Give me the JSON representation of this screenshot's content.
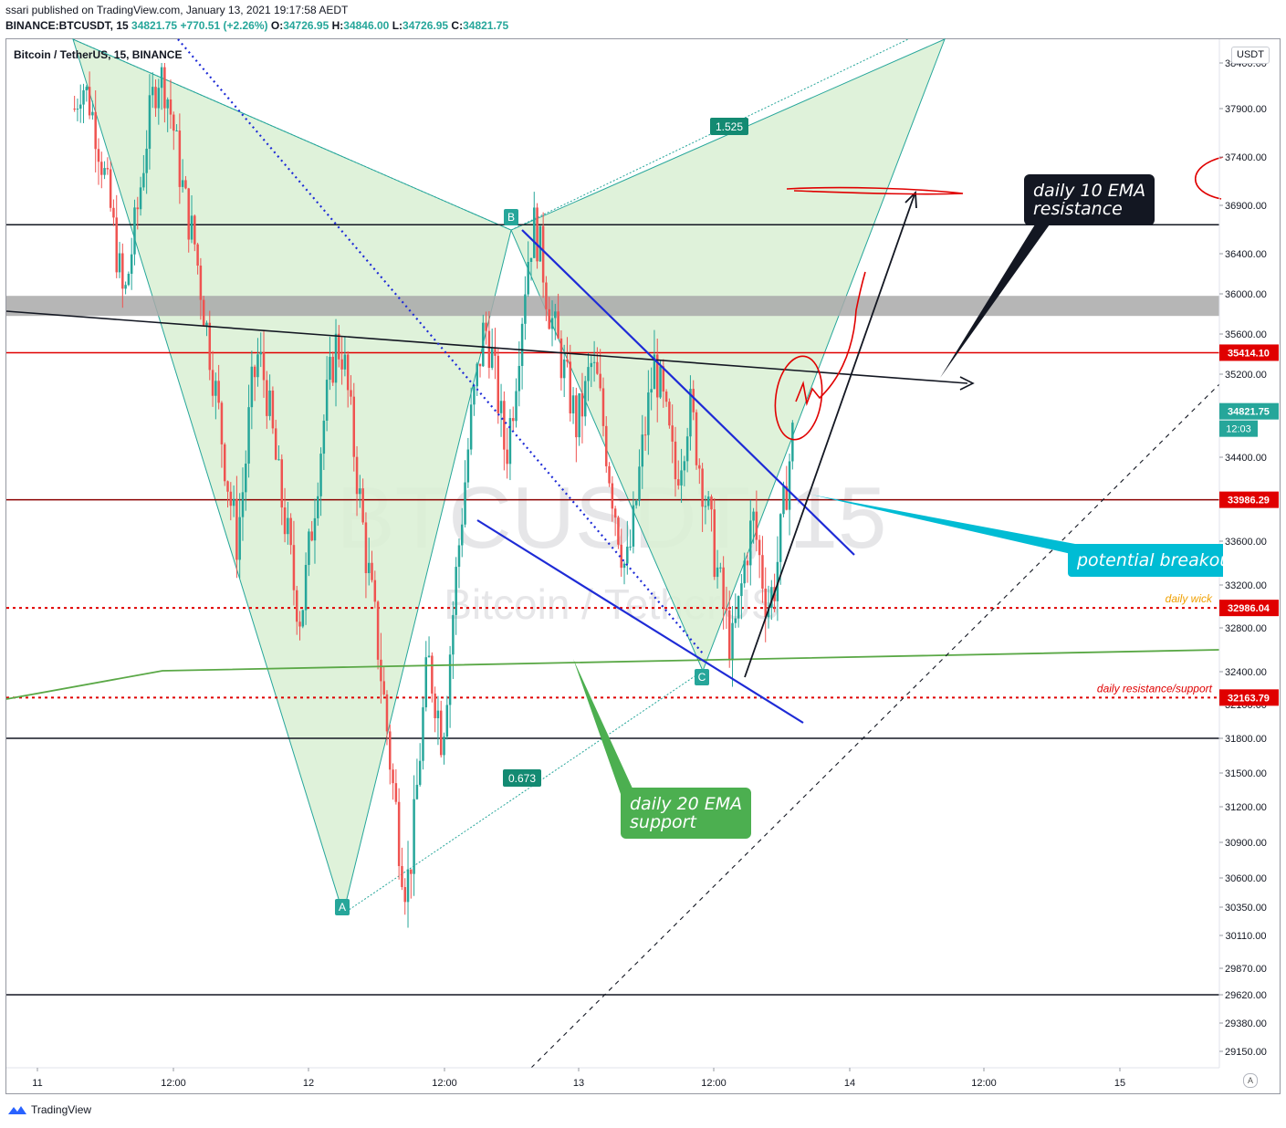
{
  "header": {
    "published": "ssari published on TradingView.com, January 13, 2021 19:17:58 AEDT",
    "symbol": "BINANCE:BTCUSDT, 15",
    "last": "34821.75",
    "change": "+770.51 (+2.26%)",
    "o_label": "O:",
    "o": "34726.95",
    "h_label": "H:",
    "h": "34846.00",
    "l_label": "L:",
    "l": "34726.95",
    "c_label": "C:",
    "c": "34821.75"
  },
  "series_title": "Bitcoin / TetherUS, 15, BINANCE",
  "currency": "USDT",
  "watermark": {
    "symbol": "BTCUSDT, 15",
    "name": "Bitcoin / TetherUS"
  },
  "brand": "TradingView",
  "auto_button": "A",
  "colors": {
    "up": "#26a69a",
    "down": "#ef5350",
    "pattern_fill": "#d9f0d3",
    "resistance": "#e00000",
    "channel": "#1e2bd6",
    "ema20": "#5aa846",
    "callout_cyan": "#00bcd4",
    "callout_black": "#131722",
    "callout_green": "#4caf50"
  },
  "chart_data": {
    "type": "candlestick",
    "interval": "15",
    "ylim": [
      29000,
      38400
    ],
    "y_ticks": [
      29150,
      29380,
      29620,
      29870,
      30110,
      30350,
      30600,
      30900,
      31200,
      31500,
      31800,
      32100,
      32400,
      32800,
      33200,
      33600,
      34000,
      34400,
      34800,
      35200,
      35600,
      36000,
      36400,
      36900,
      37400,
      37900,
      38400
    ],
    "y_tick_labels": [
      "29150.00",
      "29380.00",
      "29620.00",
      "29870.00",
      "30110.00",
      "30350.00",
      "30600.00",
      "30900.00",
      "31200.00",
      "31500.00",
      "31800.00",
      "32100.00",
      "32400.00",
      "32800.00",
      "33200.00",
      "33600.00",
      "34000.00",
      "34400.00",
      "34800.00",
      "35200.00",
      "35600.00",
      "36000.00",
      "36400.00",
      "36900.00",
      "37400.00",
      "37900.00",
      "38400.00"
    ],
    "x_ticks": [
      "11",
      "12:00",
      "12",
      "12:00",
      "13",
      "12:00",
      "14",
      "12:00",
      "15"
    ],
    "price_tags": [
      {
        "value": 35414.1,
        "label": "35414.10",
        "color": "#e00000"
      },
      {
        "value": 34821.75,
        "label": "34821.75",
        "color": "#26a69a",
        "countdown": "12:03"
      },
      {
        "value": 33986.29,
        "label": "33986.29",
        "color": "#e00000"
      },
      {
        "value": 32986.04,
        "label": "32986.04",
        "color": "#e00000"
      },
      {
        "value": 32163.79,
        "label": "32163.79",
        "color": "#e00000"
      }
    ],
    "horizontal_levels": [
      {
        "value": 36700,
        "style": "solid",
        "color": "#131722"
      },
      {
        "value": 35414.1,
        "style": "solid",
        "color": "#e00000"
      },
      {
        "value": 33986.29,
        "style": "solid",
        "color": "#8b0000"
      },
      {
        "value": 32986.04,
        "style": "dotted",
        "color": "#e00000",
        "label": "daily wick"
      },
      {
        "value": 32163.79,
        "style": "dotted",
        "color": "#e00000",
        "label": "daily resistance/support"
      },
      {
        "value": 31800,
        "style": "solid",
        "color": "#131722"
      },
      {
        "value": 29620,
        "style": "solid",
        "color": "#131722"
      }
    ],
    "zone": {
      "from": 35780,
      "to": 35980,
      "color": "#a9a9a9"
    },
    "pattern_points": [
      {
        "label": "A",
        "value": 30450
      },
      {
        "label": "B",
        "value": 36720
      },
      {
        "label": "C",
        "value": 32450
      }
    ],
    "ratios": [
      "1.525",
      "0.673"
    ],
    "annotations": [
      {
        "text": "daily 10 EMA\nresistance",
        "color": "#131722"
      },
      {
        "text": "potential breakout",
        "color": "#00bcd4"
      },
      {
        "text": "daily 20 EMA\nsupport",
        "color": "#4caf50"
      }
    ],
    "candles_close_path": [
      37900,
      38200,
      38000,
      37700,
      37300,
      36900,
      36400,
      35900,
      36400,
      36900,
      37500,
      38000,
      38300,
      38100,
      37700,
      37200,
      36800,
      36500,
      36000,
      35500,
      35000,
      34500,
      34000,
      33600,
      34200,
      35000,
      35400,
      35100,
      34600,
      34100,
      33700,
      33200,
      32900,
      33400,
      34000,
      34600,
      35100,
      35500,
      35400,
      34800,
      34200,
      33600,
      33100,
      32600,
      32000,
      31400,
      30900,
      30500,
      31000,
      31800,
      32500,
      32200,
      31800,
      32500,
      33300,
      34000,
      34700,
      35200,
      35700,
      35400,
      34900,
      34400,
      34900,
      35600,
      36300,
      36700,
      36400,
      35900,
      35600,
      35300,
      35000,
      34700,
      34900,
      35300,
      35100,
      34600,
      34100,
      33700,
      33300,
      33700,
      34300,
      34800,
      35300,
      35000,
      34600,
      34200,
      34500,
      34900,
      34500,
      34100,
      33700,
      33300,
      32900,
      32600,
      33000,
      33500,
      33800,
      33400,
      33000,
      33200,
      33700,
      34300,
      34800
    ]
  }
}
